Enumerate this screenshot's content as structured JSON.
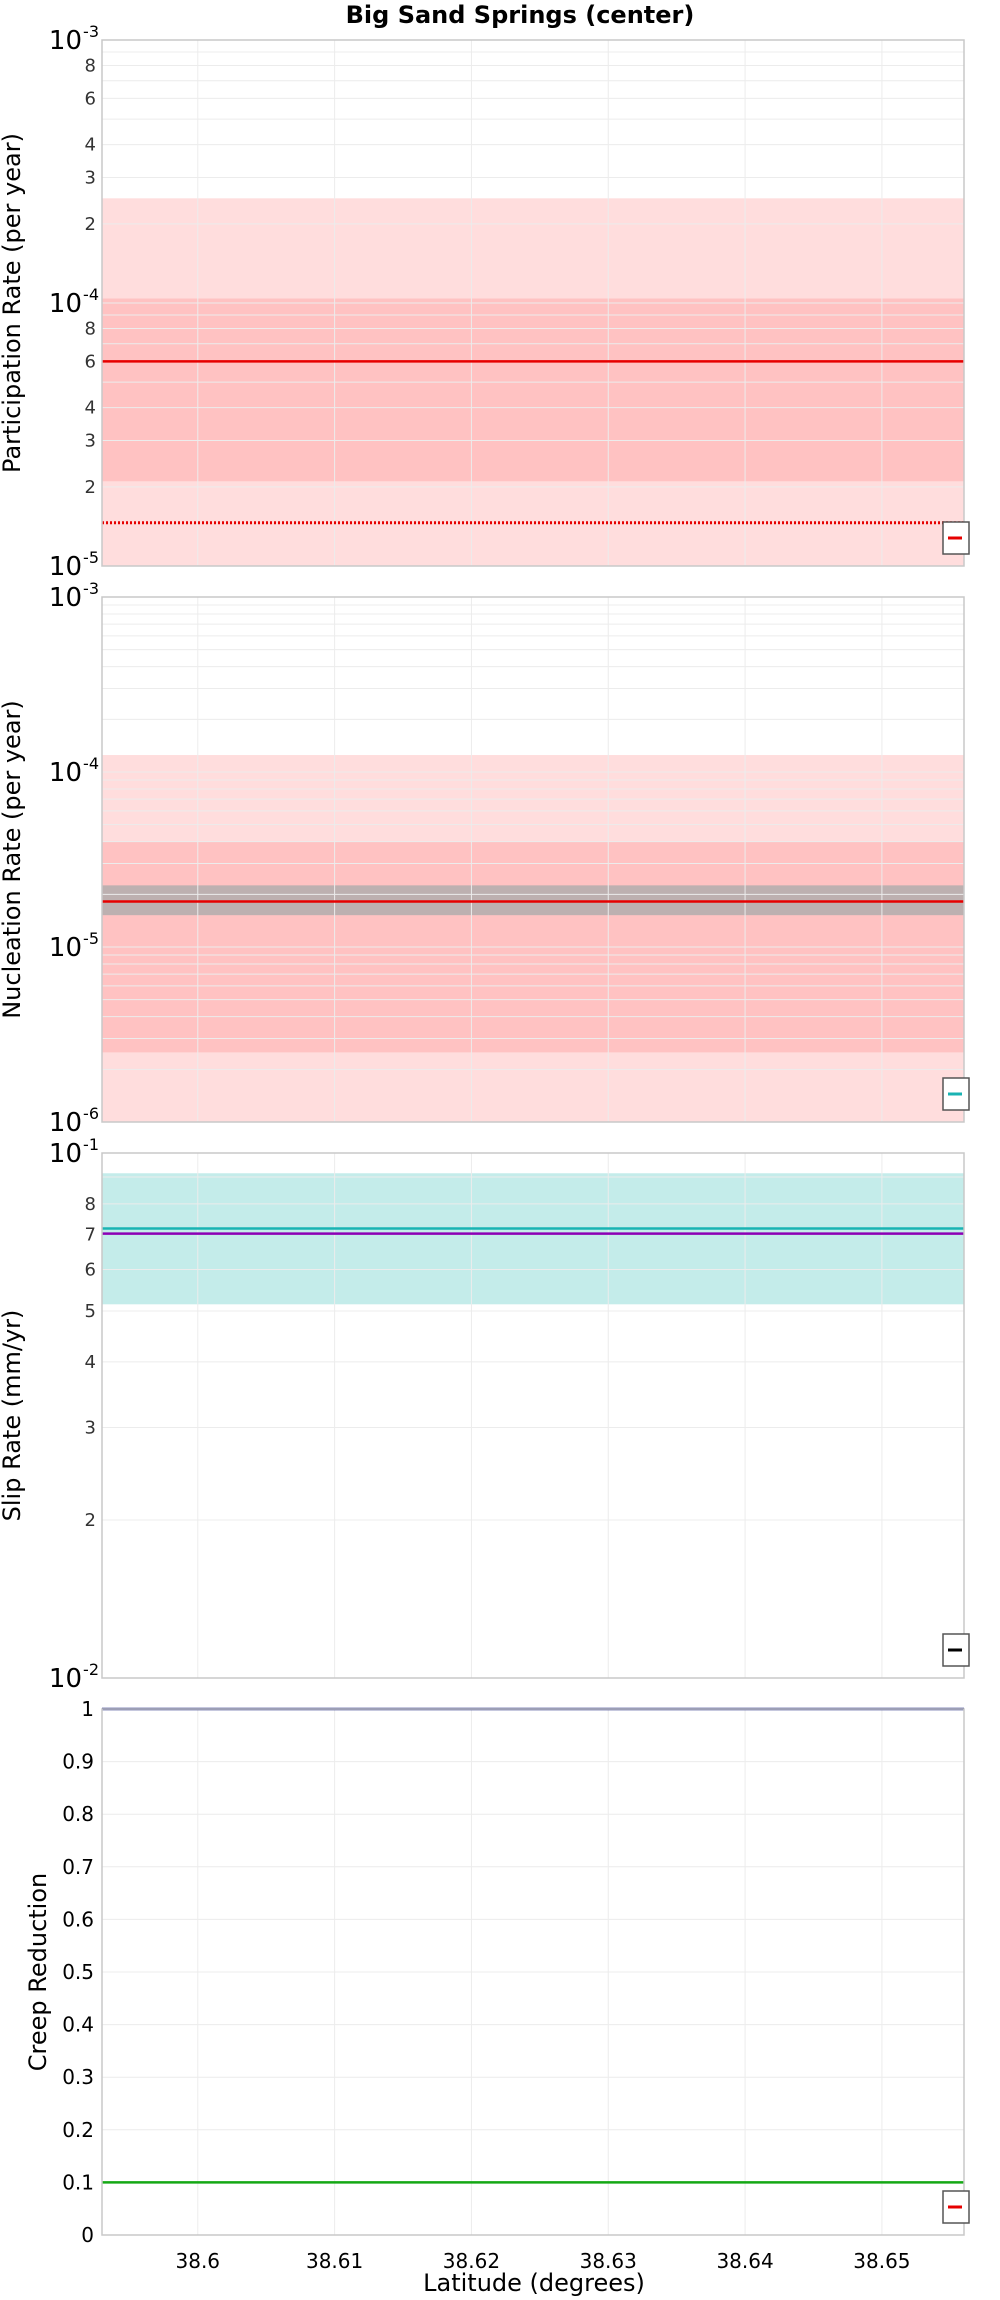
{
  "colors": {
    "red": "#e60000",
    "band_outer": "#ffdddd",
    "band_inner": "#ffc2c2",
    "gray_band": "#bdb0b0",
    "cyan": "#19b3b3",
    "cyan_band": "#c4ecea",
    "purple": "#8b00b5",
    "navy": "#1a237e",
    "green": "#14a814",
    "grid": "#ececec",
    "frame": "#c8c8c8"
  },
  "chart_data": {
    "title": "Big Sand Springs (center)",
    "xlabel": "Latitude (degrees)",
    "xlim": [
      38.593,
      38.656
    ],
    "xticks": [
      "38.6",
      "38.61",
      "38.62",
      "38.63",
      "38.64",
      "38.65"
    ],
    "panels": [
      {
        "type": "line",
        "ylabel": "Participation Rate (per year)",
        "yscale": "log",
        "ylim": [
          1e-05,
          0.001
        ],
        "major_ticks": [
          {
            "base": "10",
            "exp": "-5"
          },
          {
            "base": "10",
            "exp": "-4"
          },
          {
            "base": "10",
            "exp": "-3"
          }
        ],
        "minor_ticks": [
          "2",
          "3",
          "4",
          "6",
          "8",
          "2",
          "3",
          "4",
          "6",
          "8"
        ],
        "bands": [
          {
            "y0": 1e-05,
            "y1": 0.00025,
            "color": "band_outer"
          },
          {
            "y0": 2.1e-05,
            "y1": 0.000104,
            "color": "band_inner"
          }
        ],
        "lines": [
          {
            "y": 6e-05,
            "color": "red",
            "style": "solid"
          },
          {
            "y": 1.46e-05,
            "color": "red",
            "style": "dotted"
          }
        ],
        "legend": {
          "position": "bottom-right",
          "color": "red"
        }
      },
      {
        "type": "line",
        "ylabel": "Nucleation Rate (per year)",
        "yscale": "log",
        "ylim": [
          1e-06,
          0.001
        ],
        "major_ticks": [
          {
            "base": "10",
            "exp": "-6"
          },
          {
            "base": "10",
            "exp": "-5"
          },
          {
            "base": "10",
            "exp": "-4"
          },
          {
            "base": "10",
            "exp": "-3"
          }
        ],
        "minor_ticks": [],
        "bands": [
          {
            "y0": 1e-06,
            "y1": 0.000125,
            "color": "band_outer"
          },
          {
            "y0": 2.5e-06,
            "y1": 4e-05,
            "color": "band_inner"
          },
          {
            "y0": 1.52e-05,
            "y1": 2.25e-05,
            "color": "gray_band"
          }
        ],
        "lines": [
          {
            "y": 1.82e-05,
            "color": "red",
            "style": "solid"
          }
        ],
        "legend": {
          "position": "bottom-right",
          "color": "cyan"
        }
      },
      {
        "type": "line",
        "ylabel": "Slip Rate (mm/yr)",
        "yscale": "log",
        "ylim": [
          0.01,
          0.1
        ],
        "major_ticks": [
          {
            "base": "10",
            "exp": "-2"
          },
          {
            "base": "10",
            "exp": "-1"
          }
        ],
        "minor_ticks": [
          "2",
          "3",
          "4",
          "5",
          "6",
          "7",
          "8"
        ],
        "bands": [
          {
            "y0": 0.0515,
            "y1": 0.0915,
            "color": "cyan_band"
          }
        ],
        "lines": [
          {
            "y": 0.0718,
            "color": "cyan",
            "style": "solid"
          },
          {
            "y": 0.0702,
            "color": "purple",
            "style": "solid"
          }
        ],
        "legend": {
          "position": "bottom-right",
          "color": "black"
        }
      },
      {
        "type": "line",
        "ylabel": "Creep Reduction",
        "yscale": "linear",
        "ylim": [
          0,
          1
        ],
        "linear_ticks": [
          "0",
          "0.1",
          "0.2",
          "0.3",
          "0.4",
          "0.5",
          "0.6",
          "0.7",
          "0.8",
          "0.9",
          "1"
        ],
        "bands": [],
        "lines": [
          {
            "y": 1.0,
            "color": "navy",
            "style": "solid"
          },
          {
            "y": 0.1,
            "color": "green",
            "style": "solid"
          }
        ],
        "legend": {
          "position": "bottom-right",
          "color": "red"
        }
      }
    ]
  }
}
